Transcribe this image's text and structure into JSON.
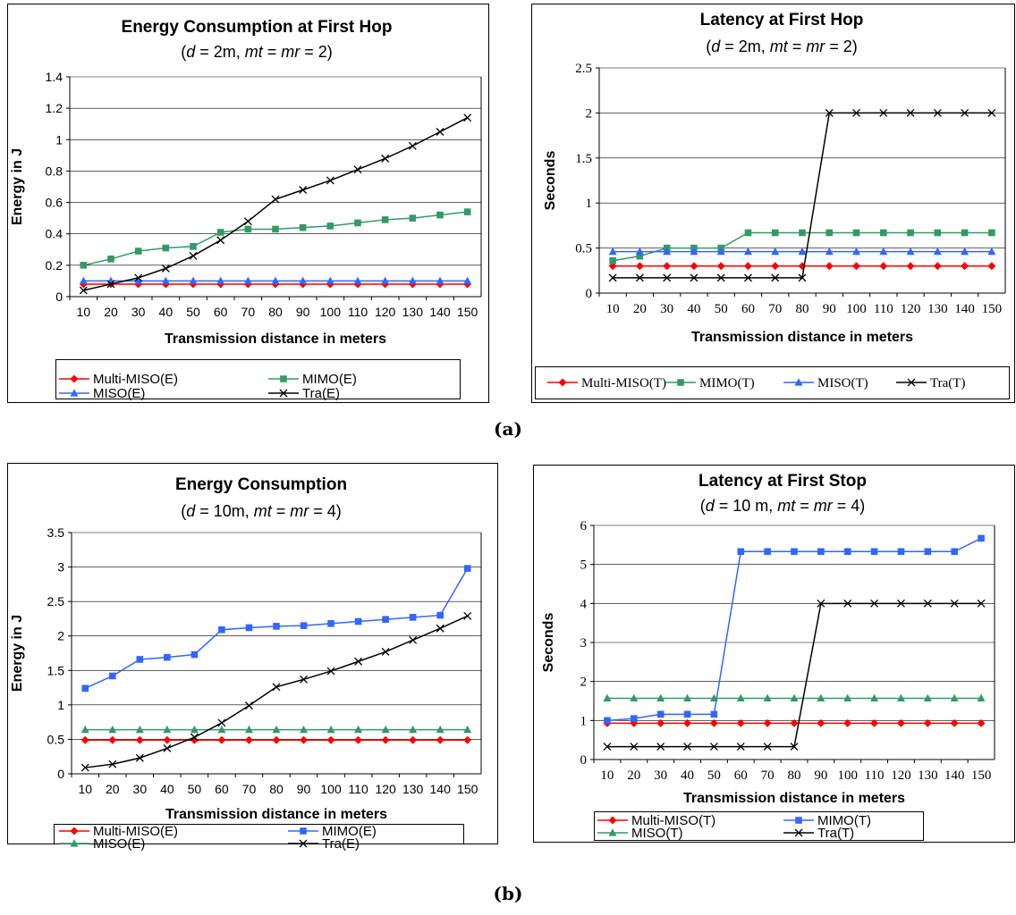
{
  "captions": [
    "(a)",
    "(b)"
  ],
  "chart_data": [
    {
      "type": "line",
      "title": "Energy Consumption at  First Hop",
      "subtitle": [
        "(",
        "d",
        " = 2m, ",
        "mt",
        " = ",
        "mr",
        " = 2)"
      ],
      "xlabel": "Transmission distance in meters",
      "ylabel": "Energy in J",
      "ylim": [
        0,
        1.4
      ],
      "yticks": [
        "0",
        "0.2",
        "0.4",
        "0.6",
        "0.8",
        "1",
        "1.2",
        "1.4"
      ],
      "grid": true,
      "legend": "bottom",
      "categories": [
        "10",
        "20",
        "30",
        "40",
        "50",
        "60",
        "70",
        "80",
        "90",
        "100",
        "110",
        "120",
        "130",
        "140",
        "150"
      ],
      "series": [
        {
          "name": "Multi-MISO(E)",
          "color": "#ff0000",
          "marker": "diamond",
          "values": [
            0.08,
            0.08,
            0.08,
            0.08,
            0.08,
            0.08,
            0.08,
            0.08,
            0.08,
            0.08,
            0.08,
            0.08,
            0.08,
            0.08,
            0.08
          ]
        },
        {
          "name": "MIMO(E)",
          "color": "#339966",
          "marker": "square",
          "values": [
            0.2,
            0.24,
            0.29,
            0.31,
            0.32,
            0.41,
            0.43,
            0.43,
            0.44,
            0.45,
            0.47,
            0.49,
            0.5,
            0.52,
            0.54
          ]
        },
        {
          "name": "MISO(E)",
          "color": "#3366ff",
          "marker": "triangle",
          "values": [
            0.1,
            0.1,
            0.1,
            0.1,
            0.1,
            0.1,
            0.1,
            0.1,
            0.1,
            0.1,
            0.1,
            0.1,
            0.1,
            0.1,
            0.1
          ]
        },
        {
          "name": "Tra(E)",
          "color": "#000000",
          "marker": "x",
          "values": [
            0.04,
            0.08,
            0.12,
            0.18,
            0.26,
            0.36,
            0.48,
            0.62,
            0.68,
            0.74,
            0.81,
            0.88,
            0.96,
            1.05,
            1.14
          ]
        }
      ]
    },
    {
      "type": "line",
      "title": "Latency at  First Hop",
      "subtitle": [
        "(",
        "d",
        " = 2m, ",
        "mt",
        " = ",
        "mr",
        " = 2)"
      ],
      "xlabel": "Transmission distance in meters",
      "ylabel": "Seconds",
      "ylim": [
        0,
        2.5
      ],
      "yticks": [
        "0",
        "0.5",
        "1",
        "1.5",
        "2",
        "2.5"
      ],
      "grid": true,
      "legend": "bottom",
      "categories": [
        "10",
        "20",
        "30",
        "40",
        "50",
        "60",
        "70",
        "80",
        "90",
        "100",
        "110",
        "120",
        "130",
        "140",
        "150"
      ],
      "series": [
        {
          "name": "Multi-MISO(T)",
          "color": "#ff0000",
          "marker": "diamond",
          "values": [
            0.3,
            0.3,
            0.3,
            0.3,
            0.3,
            0.3,
            0.3,
            0.3,
            0.3,
            0.3,
            0.3,
            0.3,
            0.3,
            0.3,
            0.3
          ]
        },
        {
          "name": "MIMO(T)",
          "color": "#339966",
          "marker": "square",
          "values": [
            0.36,
            0.41,
            0.5,
            0.5,
            0.5,
            0.67,
            0.67,
            0.67,
            0.67,
            0.67,
            0.67,
            0.67,
            0.67,
            0.67,
            0.67
          ]
        },
        {
          "name": "MISO(T)",
          "color": "#3366ff",
          "marker": "triangle",
          "values": [
            0.46,
            0.46,
            0.46,
            0.46,
            0.46,
            0.46,
            0.46,
            0.46,
            0.46,
            0.46,
            0.46,
            0.46,
            0.46,
            0.46,
            0.46
          ]
        },
        {
          "name": "Tra(T)",
          "color": "#000000",
          "marker": "x",
          "values": [
            0.17,
            0.17,
            0.17,
            0.17,
            0.17,
            0.17,
            0.17,
            0.17,
            2.0,
            2.0,
            2.0,
            2.0,
            2.0,
            2.0,
            2.0
          ]
        }
      ]
    },
    {
      "type": "line",
      "title": "Energy Consumption",
      "subtitle": [
        "(",
        "d",
        " = 10m, ",
        "mt",
        " = ",
        "mr",
        " = 4)"
      ],
      "xlabel": "Transmission distance in meters",
      "ylabel": "Energy in J",
      "ylim": [
        0,
        3.5
      ],
      "yticks": [
        "0",
        "0.5",
        "1",
        "1.5",
        "2",
        "2.5",
        "3",
        "3.5"
      ],
      "grid": true,
      "legend": "bottom",
      "categories": [
        "10",
        "20",
        "30",
        "40",
        "50",
        "60",
        "70",
        "80",
        "90",
        "100",
        "110",
        "120",
        "130",
        "140",
        "150"
      ],
      "series": [
        {
          "name": "Multi-MISO(E)",
          "color": "#ff0000",
          "marker": "diamond",
          "values": [
            0.49,
            0.49,
            0.49,
            0.49,
            0.49,
            0.49,
            0.49,
            0.49,
            0.49,
            0.49,
            0.49,
            0.49,
            0.49,
            0.49,
            0.49
          ]
        },
        {
          "name": "MIMO(E)",
          "color": "#3366ff",
          "marker": "square",
          "values": [
            1.24,
            1.42,
            1.66,
            1.69,
            1.73,
            2.09,
            2.12,
            2.14,
            2.15,
            2.18,
            2.21,
            2.24,
            2.27,
            2.3,
            2.98
          ]
        },
        {
          "name": "MISO(E)",
          "color": "#339966",
          "marker": "triangle",
          "values": [
            0.64,
            0.64,
            0.64,
            0.64,
            0.64,
            0.64,
            0.64,
            0.64,
            0.64,
            0.64,
            0.64,
            0.64,
            0.64,
            0.64,
            0.64
          ]
        },
        {
          "name": "Tra(E)",
          "color": "#000000",
          "marker": "x",
          "values": [
            0.09,
            0.14,
            0.23,
            0.37,
            0.53,
            0.74,
            0.99,
            1.26,
            1.37,
            1.49,
            1.63,
            1.77,
            1.94,
            2.11,
            2.29
          ]
        }
      ]
    },
    {
      "type": "line",
      "title": "Latency at First Stop",
      "subtitle": [
        "(",
        "d",
        " = 10 m, ",
        "mt",
        " = ",
        "mr",
        " = 4)"
      ],
      "xlabel": "Transmission distance in meters",
      "ylabel": "Seconds",
      "ylim": [
        0,
        6
      ],
      "yticks": [
        "0",
        "1",
        "2",
        "3",
        "4",
        "5",
        "6"
      ],
      "grid": true,
      "legend": "bottom",
      "categories": [
        "10",
        "20",
        "30",
        "40",
        "50",
        "60",
        "70",
        "80",
        "90",
        "100",
        "110",
        "120",
        "130",
        "140",
        "150"
      ],
      "series": [
        {
          "name": "Multi-MISO(T)",
          "color": "#ff0000",
          "marker": "diamond",
          "values": [
            0.93,
            0.93,
            0.93,
            0.93,
            0.93,
            0.93,
            0.93,
            0.93,
            0.93,
            0.93,
            0.93,
            0.93,
            0.93,
            0.93,
            0.93
          ]
        },
        {
          "name": "MIMO(T)",
          "color": "#3366ff",
          "marker": "square",
          "values": [
            1.0,
            1.05,
            1.16,
            1.16,
            1.16,
            5.33,
            5.33,
            5.33,
            5.33,
            5.33,
            5.33,
            5.33,
            5.33,
            5.33,
            5.67
          ]
        },
        {
          "name": "MISO(T)",
          "color": "#339966",
          "marker": "triangle",
          "values": [
            1.57,
            1.57,
            1.57,
            1.57,
            1.57,
            1.57,
            1.57,
            1.57,
            1.57,
            1.57,
            1.57,
            1.57,
            1.57,
            1.57,
            1.57
          ]
        },
        {
          "name": "Tra(T)",
          "color": "#000000",
          "marker": "x",
          "values": [
            0.33,
            0.33,
            0.33,
            0.33,
            0.33,
            0.33,
            0.33,
            0.33,
            4.0,
            4.0,
            4.0,
            4.0,
            4.0,
            4.0,
            4.0
          ]
        }
      ]
    }
  ]
}
